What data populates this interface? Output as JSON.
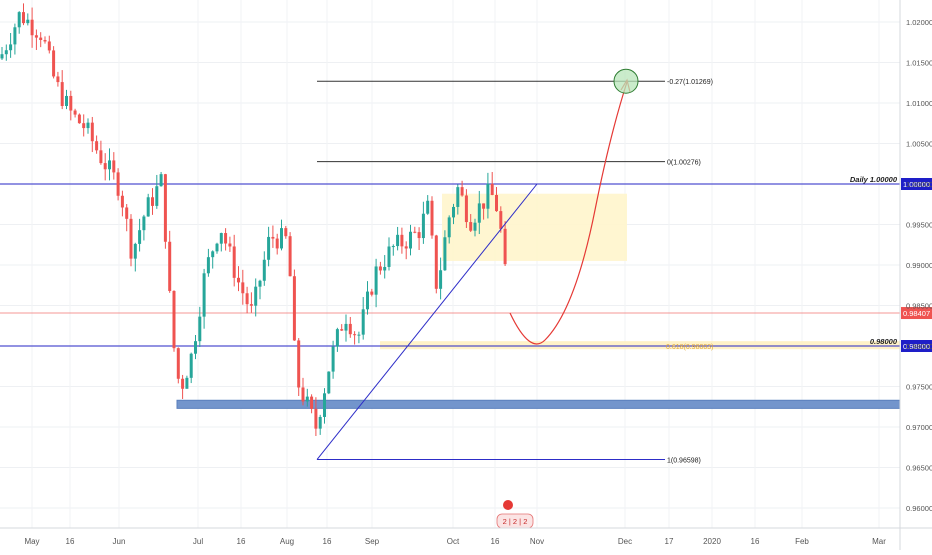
{
  "chart_data": {
    "type": "candlestick",
    "x_ticks": [
      "May",
      "16",
      "Jun",
      "Jul",
      "16",
      "Aug",
      "16",
      "Sep",
      "Oct",
      "16",
      "Nov",
      "Dec",
      "17",
      "2020",
      "16",
      "Feb",
      "Mar"
    ],
    "y_ticks": [
      "1.02000",
      "1.01500",
      "1.01000",
      "1.00500",
      "1.00000",
      "0.99500",
      "0.99000",
      "0.98500",
      "0.98000",
      "0.97500",
      "0.97000",
      "0.96500",
      "0.96000"
    ],
    "ylim": [
      0.9565,
      1.0235
    ],
    "grid": true,
    "price_badges": [
      {
        "label": "1.00000",
        "value": 1.0,
        "color": "#1e1ec8"
      },
      {
        "label": "0.98407",
        "value": 0.98407,
        "color": "#ef5350"
      },
      {
        "label": "0.98000",
        "value": 0.98,
        "color": "#1e1ec8"
      }
    ],
    "horizontal_lines": [
      {
        "label": "Daily 1.00000",
        "value": 1.0,
        "color": "#2626c6"
      },
      {
        "label": "0.98000",
        "value": 0.98,
        "color": "#2626c6"
      }
    ],
    "fib_levels": [
      {
        "label": "-0.27(1.01269)",
        "value": 1.01269
      },
      {
        "label": "0(1.00276)",
        "value": 1.00276
      },
      {
        "label": "0.618(0.98003)",
        "value": 0.98003
      },
      {
        "label": "1(0.96598)",
        "value": 0.96598
      }
    ],
    "zones": [
      {
        "name": "support-zone",
        "from": 0.9723,
        "to": 0.9733,
        "color": "#6b8fc9"
      },
      {
        "name": "resistance-box",
        "from": 0.9905,
        "to": 0.9988,
        "color": "#fff5cc"
      },
      {
        "name": "fib-0618-band",
        "from": 0.9796,
        "to": 0.9806,
        "color": "#fff1c2"
      }
    ],
    "projection_target": 1.01269,
    "colors": {
      "up": "#26a69a",
      "down": "#ef5350"
    },
    "watermark_count": "2 | 2 | 2"
  }
}
